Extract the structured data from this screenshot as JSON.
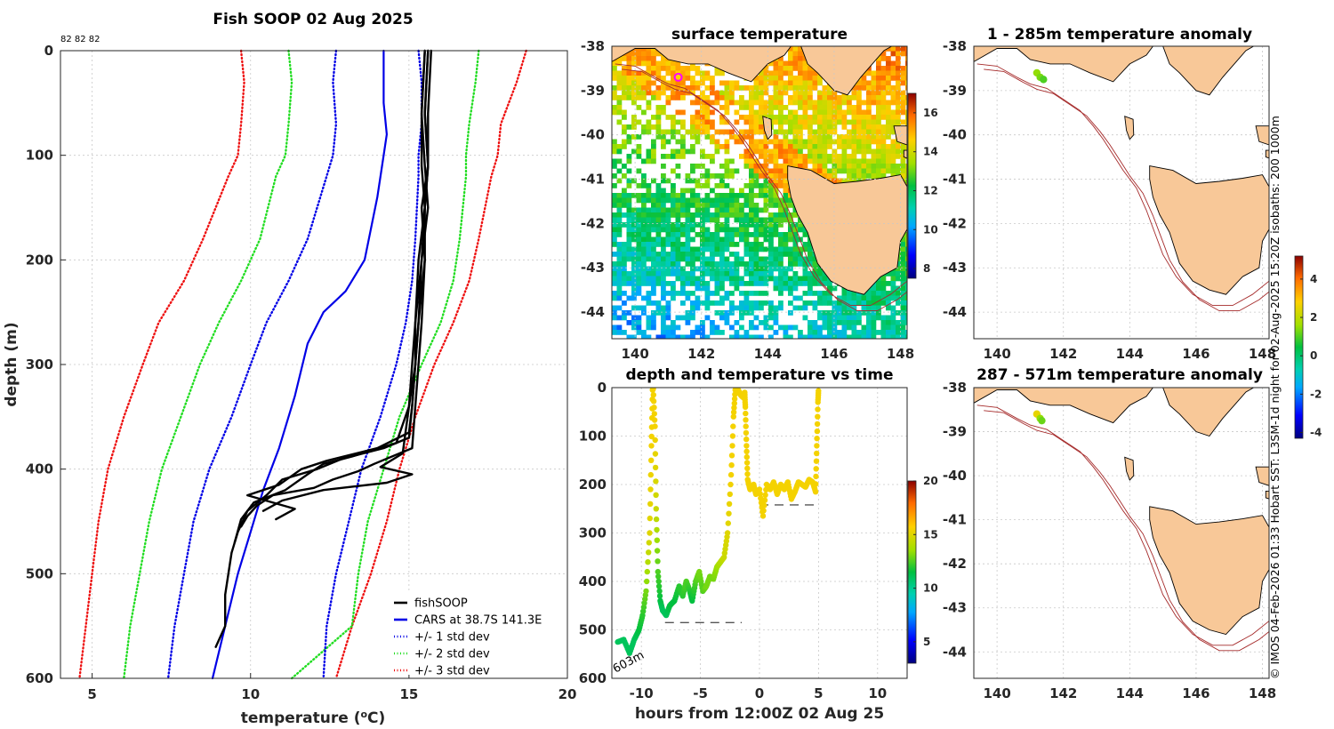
{
  "chart_data": [
    {
      "type": "line",
      "id": "profile",
      "title": "Fish SOOP 02 Aug 2025",
      "corner_note": "82 82 82",
      "xlabel": "temperature (",
      "xlabel_sup": "o",
      "xlabel_end": "C)",
      "ylabel": "depth (m)",
      "xlim": [
        4,
        20
      ],
      "ylim": [
        600,
        0
      ],
      "xticks": [
        5,
        10,
        15,
        20
      ],
      "yticks": [
        0,
        100,
        200,
        300,
        400,
        500,
        600
      ],
      "legend": [
        {
          "label": "fishSOOP",
          "color": "#000000",
          "style": "solid"
        },
        {
          "label": "CARS at 38.7S 141.3E",
          "color": "#0000e6",
          "style": "solid"
        },
        {
          "label": "+/- 1 std dev",
          "color": "#0000e6",
          "style": "dotted"
        },
        {
          "label": "+/- 2 std dev",
          "color": "#22dd22",
          "style": "dotted"
        },
        {
          "label": "+/- 3 std dev",
          "color": "#ee1111",
          "style": "dotted"
        }
      ],
      "cars_mean": {
        "depth": [
          0,
          50,
          80,
          100,
          140,
          200,
          230,
          250,
          280,
          330,
          380,
          420,
          460,
          500,
          550,
          600
        ],
        "temp": [
          14.2,
          14.2,
          14.3,
          14.2,
          14.0,
          13.6,
          13.0,
          12.3,
          11.8,
          11.4,
          10.9,
          10.4,
          10.0,
          9.6,
          9.2,
          8.8
        ]
      },
      "std": {
        "depth": [
          0,
          30,
          70,
          100,
          120,
          180,
          220,
          260,
          300,
          350,
          400,
          450,
          500,
          550,
          600
        ],
        "plus1": [
          15.3,
          15.4,
          15.4,
          15.3,
          15.3,
          15.2,
          15.1,
          14.9,
          14.6,
          14.1,
          13.5,
          13.1,
          12.7,
          12.4,
          12.3
        ],
        "minus1": [
          12.7,
          12.6,
          12.7,
          12.6,
          12.4,
          11.8,
          11.2,
          10.5,
          10.0,
          9.4,
          8.7,
          8.2,
          7.9,
          7.6,
          7.4
        ],
        "plus2": [
          17.2,
          17.1,
          16.9,
          16.8,
          16.8,
          16.6,
          16.4,
          16.0,
          15.4,
          14.7,
          14.2,
          13.7,
          13.4,
          13.2,
          11.3
        ],
        "minus2": [
          11.2,
          11.3,
          11.2,
          11.1,
          10.8,
          10.3,
          9.7,
          9.0,
          8.4,
          7.8,
          7.2,
          6.8,
          6.5,
          6.2,
          6.0
        ],
        "plus3": [
          18.7,
          18.4,
          17.9,
          17.8,
          17.6,
          17.2,
          16.9,
          16.4,
          15.8,
          15.2,
          14.7,
          14.3,
          13.8,
          13.2,
          12.7
        ],
        "minus3": [
          9.7,
          9.8,
          9.7,
          9.6,
          9.3,
          8.5,
          7.9,
          7.1,
          6.6,
          6.0,
          5.5,
          5.2,
          5.0,
          4.8,
          4.6
        ]
      },
      "fishsoop_casts": [
        {
          "depth": [
            0,
            60,
            110,
            150,
            200,
            260,
            300,
            340,
            370,
            380,
            390,
            400,
            410,
            425,
            440,
            460,
            480,
            520,
            550,
            570
          ],
          "temp": [
            15.6,
            15.5,
            15.6,
            15.4,
            15.5,
            15.3,
            15.2,
            15.1,
            15.0,
            14.2,
            12.9,
            12.1,
            11.0,
            10.5,
            9.9,
            9.6,
            9.4,
            9.2,
            9.2,
            8.9
          ]
        },
        {
          "depth": [
            0,
            60,
            110,
            150,
            200,
            260,
            300,
            340,
            375,
            388,
            395,
            405,
            420,
            432,
            448,
            470
          ],
          "temp": [
            15.5,
            15.4,
            15.5,
            15.6,
            15.4,
            15.2,
            15.2,
            15.0,
            14.6,
            13.2,
            12.3,
            11.8,
            11.1,
            10.1,
            9.7,
            9.5
          ]
        },
        {
          "depth": [
            0,
            60,
            110,
            150,
            200,
            260,
            300,
            340,
            380,
            395,
            402,
            410,
            418,
            425,
            435,
            445,
            455
          ],
          "temp": [
            15.7,
            15.6,
            15.6,
            15.5,
            15.5,
            15.4,
            15.3,
            15.2,
            15.1,
            13.9,
            13.4,
            12.6,
            12.0,
            10.7,
            10.2,
            9.9,
            9.7
          ]
        },
        {
          "depth": [
            0,
            60,
            110,
            150,
            200,
            260,
            300,
            340,
            365,
            380,
            392,
            400,
            415,
            425,
            438,
            448
          ],
          "temp": [
            15.6,
            15.5,
            15.6,
            15.5,
            15.4,
            15.3,
            15.2,
            15.1,
            15.0,
            14.0,
            12.4,
            11.6,
            10.9,
            9.9,
            11.4,
            10.8
          ]
        },
        {
          "depth": [
            0,
            60,
            110,
            150,
            200,
            260,
            300,
            340,
            385,
            398,
            405,
            413,
            420,
            430,
            440
          ],
          "temp": [
            15.5,
            15.4,
            15.4,
            15.5,
            15.3,
            15.2,
            15.1,
            15.0,
            14.8,
            14.1,
            15.1,
            14.3,
            12.3,
            11.0,
            10.4
          ]
        }
      ]
    },
    {
      "type": "heatmap",
      "id": "sst",
      "title": "surface temperature",
      "xlim": [
        139.3,
        148.2
      ],
      "ylim": [
        -44.6,
        -38
      ],
      "xticks": [
        140,
        142,
        144,
        146,
        148
      ],
      "yticks": [
        -38,
        -39,
        -40,
        -41,
        -42,
        -43,
        -44
      ],
      "colorbar": {
        "min": 7.5,
        "max": 17,
        "ticks": [
          8,
          10,
          12,
          14,
          16
        ]
      },
      "vessel_position": {
        "lon": 141.3,
        "lat": -38.7
      }
    },
    {
      "type": "scatter",
      "id": "depth_time",
      "title": "depth and temperature vs time",
      "xlabel": "hours from 12:00Z 02 Aug 25",
      "xlim": [
        -12.5,
        12.5
      ],
      "ylim": [
        600,
        0
      ],
      "xticks": [
        -10,
        -5,
        0,
        5,
        10
      ],
      "yticks": [
        0,
        100,
        200,
        300,
        400,
        500,
        600
      ],
      "colorbar": {
        "min": 3,
        "max": 20,
        "ticks": [
          5,
          10,
          15,
          20
        ]
      },
      "bottom_label": "603m",
      "seafloor_dashes": [
        {
          "x": [
            -8,
            -1.5
          ],
          "depth": 485
        },
        {
          "x": [
            0,
            4.8
          ],
          "depth": 242
        }
      ],
      "track": {
        "hours": [
          -12,
          -11.5,
          -11,
          -10.6,
          -10.2,
          -9.9,
          -9.6,
          -9.3,
          -9.15,
          -9.05,
          -9,
          -8.85,
          -8.75,
          -8.6,
          -8.4,
          -8.2,
          -7.9,
          -7.6,
          -7.2,
          -6.8,
          -6.5,
          -6.2,
          -5.9,
          -5.7,
          -5.4,
          -5.1,
          -4.8,
          -4.5,
          -4.2,
          -3.9,
          -3.6,
          -3.3,
          -3.0,
          -2.7,
          -2.4,
          -2.2,
          -2.05,
          -1.95,
          -1.8,
          -1.6,
          -1.4,
          -1.25,
          -1.2,
          -1.1,
          -1.0,
          -0.8,
          -0.5,
          -0.3,
          0.0,
          0.3,
          0.6,
          0.9,
          1.2,
          1.5,
          1.8,
          2.1,
          2.4,
          2.7,
          3.0,
          3.3,
          3.6,
          3.9,
          4.2,
          4.5,
          4.75,
          4.85,
          4.95,
          5.0
        ],
        "depth": [
          525,
          520,
          548,
          520,
          500,
          470,
          420,
          300,
          120,
          5,
          2,
          80,
          250,
          380,
          440,
          460,
          470,
          450,
          440,
          410,
          430,
          400,
          420,
          440,
          400,
          380,
          420,
          410,
          390,
          395,
          370,
          360,
          350,
          300,
          180,
          60,
          5,
          2,
          5,
          15,
          20,
          10,
          40,
          120,
          190,
          210,
          200,
          220,
          210,
          265,
          200,
          210,
          195,
          220,
          200,
          210,
          195,
          230,
          215,
          195,
          200,
          205,
          190,
          195,
          215,
          120,
          30,
          2
        ],
        "temp": [
          11,
          11,
          11,
          11,
          11.5,
          12,
          13,
          15,
          15.5,
          15.5,
          15.5,
          15.5,
          14.5,
          12.5,
          11.5,
          11,
          11,
          11.5,
          11.5,
          12,
          12,
          12.5,
          12,
          11.5,
          12.5,
          13,
          12.5,
          13,
          13,
          13,
          13.5,
          14,
          14.5,
          15,
          15.5,
          15.5,
          15.5,
          15.5,
          15.5,
          15.5,
          15.5,
          15.5,
          15.5,
          15.5,
          15.5,
          15.5,
          15.5,
          15.5,
          15.5,
          15.5,
          15.5,
          15.5,
          15.5,
          15.5,
          15.5,
          15.5,
          15.5,
          15.5,
          15.5,
          15.5,
          15.5,
          15.5,
          15.5,
          15.5,
          15.5,
          15.5,
          15.5,
          15.5
        ]
      }
    },
    {
      "type": "scatter",
      "id": "anom1",
      "title": "1 - 285m temperature anomaly",
      "xlim": [
        139.3,
        148.2
      ],
      "ylim": [
        -44.6,
        -38
      ],
      "xticks": [
        140,
        142,
        144,
        146,
        148
      ],
      "yticks": [
        -38,
        -39,
        -40,
        -41,
        -42,
        -43,
        -44
      ],
      "points": [
        {
          "lon": 141.2,
          "lat": -38.6,
          "anomaly": 1.5
        },
        {
          "lon": 141.3,
          "lat": -38.7,
          "anomaly": 1.3
        },
        {
          "lon": 141.4,
          "lat": -38.75,
          "anomaly": 1.0
        }
      ]
    },
    {
      "type": "scatter",
      "id": "anom2",
      "title": "287 - 571m temperature anomaly",
      "xlim": [
        139.3,
        148.2
      ],
      "ylim": [
        -44.6,
        -38
      ],
      "xticks": [
        140,
        142,
        144,
        146,
        148
      ],
      "yticks": [
        -38,
        -39,
        -40,
        -41,
        -42,
        -43,
        -44
      ],
      "points": [
        {
          "lon": 141.2,
          "lat": -38.6,
          "anomaly": 2.5
        },
        {
          "lon": 141.3,
          "lat": -38.7,
          "anomaly": 1.5
        },
        {
          "lon": 141.35,
          "lat": -38.75,
          "anomaly": 1.2
        }
      ]
    },
    {
      "type": "heatmap",
      "id": "anom_colorbar",
      "colorbar": {
        "min": -4.3,
        "max": 5.2,
        "ticks": [
          -4,
          -2,
          0,
          2,
          4
        ]
      }
    }
  ],
  "side_text": "© IMOS 04-Feb-2026 01:33 Hobart SST: L3SM-1d night for 02-Aug-2025 15:20Z isobaths: 200  1000m"
}
